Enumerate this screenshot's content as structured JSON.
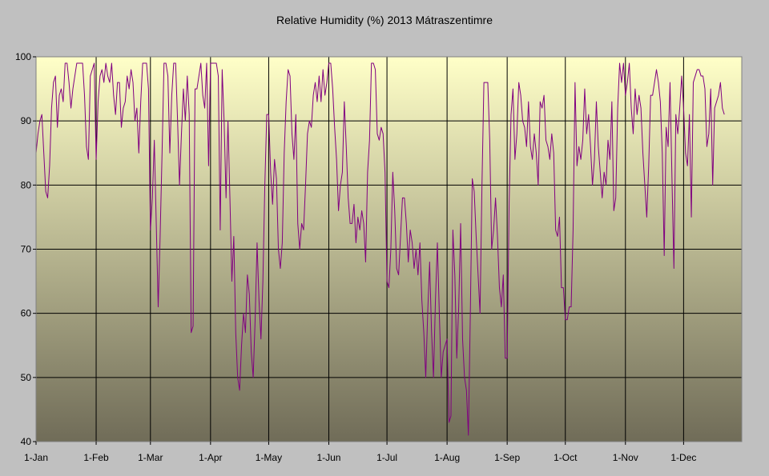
{
  "chart_data": {
    "type": "line",
    "title": "Relative Humidity (%) 2013 Mátraszentimre",
    "xlabel": "",
    "ylabel": "",
    "ylim": [
      40,
      100
    ],
    "yticks": [
      "40",
      "50",
      "60",
      "70",
      "80",
      "90",
      "100"
    ],
    "xlim": [
      "2013-01-01",
      "2013-12-31"
    ],
    "xticks": [
      {
        "date": "2013-01-01",
        "label": "1-Jan"
      },
      {
        "date": "2013-02-01",
        "label": "1-Feb"
      },
      {
        "date": "2013-03-01",
        "label": "1-Mar"
      },
      {
        "date": "2013-04-01",
        "label": "1-Apr"
      },
      {
        "date": "2013-05-01",
        "label": "1-May"
      },
      {
        "date": "2013-06-01",
        "label": "1-Jun"
      },
      {
        "date": "2013-07-01",
        "label": "1-Jul"
      },
      {
        "date": "2013-08-01",
        "label": "1-Aug"
      },
      {
        "date": "2013-09-01",
        "label": "1-Sep"
      },
      {
        "date": "2013-10-01",
        "label": "1-Oct"
      },
      {
        "date": "2013-11-01",
        "label": "1-Nov"
      },
      {
        "date": "2013-12-01",
        "label": "1-Dec"
      }
    ],
    "grid": {
      "horizontal": true,
      "vertical": true
    },
    "colors": {
      "line": "#800080",
      "background_top": "#ffffc8",
      "background_bottom": "#706c58",
      "outer": "#c0c0c0",
      "grid": "#000000"
    },
    "series": [
      {
        "x_start": "2013-01-01",
        "x_step_days": 1,
        "values": [
          85,
          88,
          90,
          91,
          85,
          79,
          78,
          83,
          92,
          96,
          97,
          89,
          94,
          95,
          93,
          99,
          99,
          96,
          92,
          95,
          97,
          99,
          99,
          99,
          99,
          94,
          86,
          84,
          97,
          98,
          99,
          84,
          93,
          97,
          98,
          96,
          99,
          97,
          96,
          99,
          94,
          91,
          96,
          96,
          89,
          92,
          93,
          97,
          95,
          98,
          96,
          90,
          92,
          85,
          93,
          99,
          99,
          99,
          95,
          73,
          78,
          87,
          74,
          61,
          72,
          85,
          99,
          99,
          97,
          85,
          94,
          99,
          99,
          90,
          80,
          88,
          95,
          90,
          97,
          91,
          57,
          58,
          95,
          95,
          97,
          99,
          94,
          92,
          99,
          83,
          99,
          99,
          99,
          99,
          97,
          73,
          98,
          90,
          78,
          90,
          78,
          65,
          72,
          57,
          50,
          48,
          55,
          60,
          57,
          66,
          63,
          54,
          50,
          59,
          71,
          62,
          56,
          65,
          80,
          91,
          91,
          82,
          77,
          84,
          81,
          70,
          67,
          71,
          85,
          93,
          98,
          97,
          88,
          84,
          91,
          74,
          70,
          74,
          73,
          80,
          88,
          90,
          89,
          94,
          96,
          93,
          97,
          93,
          98,
          94,
          96,
          99,
          99,
          95,
          89,
          84,
          76,
          80,
          82,
          93,
          86,
          78,
          74,
          74,
          77,
          71,
          75,
          73,
          76,
          74,
          68,
          82,
          87,
          99,
          99,
          98,
          88,
          87,
          89,
          88,
          82,
          65,
          64,
          70,
          82,
          76,
          67,
          66,
          72,
          78,
          78,
          74,
          68,
          73,
          71,
          67,
          70,
          66,
          71,
          62,
          57,
          50,
          60,
          68,
          57,
          50,
          62,
          71,
          60,
          50,
          54,
          55,
          56,
          43,
          44,
          73,
          66,
          53,
          61,
          74,
          56,
          50,
          48,
          41,
          60,
          81,
          79,
          72,
          66,
          60,
          80,
          96,
          96,
          96,
          87,
          70,
          73,
          78,
          72,
          64,
          61,
          66,
          53,
          53,
          77,
          91,
          95,
          84,
          88,
          96,
          94,
          90,
          89,
          86,
          93,
          86,
          84,
          88,
          85,
          80,
          93,
          92,
          94,
          87,
          86,
          84,
          88,
          85,
          73,
          72,
          75,
          64,
          64,
          59,
          59,
          61,
          61,
          73,
          96,
          83,
          86,
          84,
          87,
          95,
          88,
          91,
          86,
          80,
          84,
          93,
          86,
          82,
          78,
          82,
          80,
          87,
          84,
          93,
          76,
          78,
          92,
          99,
          96,
          99,
          94,
          96,
          99,
          92,
          88,
          95,
          91,
          94,
          92,
          85,
          80,
          75,
          83,
          94,
          94,
          96,
          98,
          96,
          93,
          85,
          69,
          89,
          86,
          96,
          81,
          67,
          91,
          88,
          92,
          97,
          92,
          85,
          83,
          91,
          75,
          96,
          97,
          98,
          98,
          97,
          97,
          95,
          86,
          88,
          95,
          80,
          92,
          93,
          94,
          96,
          92,
          91
        ]
      }
    ]
  }
}
